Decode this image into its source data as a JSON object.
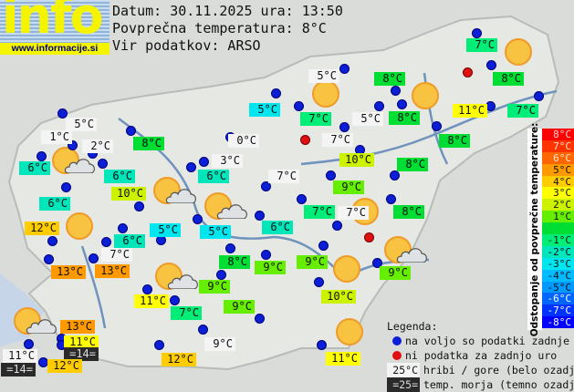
{
  "logo": {
    "text": "info",
    "url": "www.informacije.si"
  },
  "header": {
    "date_line": "Datum: 30.11.2025 ura: 13:50",
    "avg_line": "Povprečna temperatura: 8°C",
    "source_line": "Vir podatkov: ARSO"
  },
  "average_temperature": 8,
  "stations": [
    {
      "t": "5°C",
      "k": "mountain"
    },
    {
      "t": "1°C",
      "k": "mountain"
    },
    {
      "t": "2°C",
      "k": "mountain"
    },
    {
      "t": "8°C",
      "k": "valley"
    },
    {
      "t": "0°C",
      "k": "mountain"
    },
    {
      "t": "6°C",
      "k": "valley"
    },
    {
      "t": "3°C",
      "k": "mountain"
    },
    {
      "t": "6°C",
      "k": "valley"
    },
    {
      "t": "6°C",
      "k": "valley"
    },
    {
      "t": "5°C",
      "k": "valley"
    },
    {
      "t": "6°C",
      "k": "valley"
    },
    {
      "t": "10°C",
      "k": "valley"
    },
    {
      "t": "12°C",
      "k": "valley"
    },
    {
      "t": "5°C",
      "k": "valley"
    },
    {
      "t": "5°C",
      "k": "valley"
    },
    {
      "t": "6°C",
      "k": "valley"
    },
    {
      "t": "7°C",
      "k": "valley"
    },
    {
      "t": "5°C",
      "k": "mountain"
    },
    {
      "t": "8°C",
      "k": "valley"
    },
    {
      "t": "8°C",
      "k": "valley"
    },
    {
      "t": "7°C",
      "k": "valley"
    },
    {
      "t": "5°C",
      "k": "mountain"
    },
    {
      "t": "8°C",
      "k": "valley"
    },
    {
      "t": "11°C",
      "k": "valley"
    },
    {
      "t": "7°C",
      "k": "valley"
    },
    {
      "t": "7°C",
      "k": "mountain"
    },
    {
      "t": "8°C",
      "k": "valley"
    },
    {
      "t": "10°C",
      "k": "valley"
    },
    {
      "t": "8°C",
      "k": "valley"
    },
    {
      "t": "7°C",
      "k": "mountain"
    },
    {
      "t": "9°C",
      "k": "valley"
    },
    {
      "t": "7°C",
      "k": "valley"
    },
    {
      "t": "7°C",
      "k": "mountain"
    },
    {
      "t": "8°C",
      "k": "valley"
    },
    {
      "t": "6°C",
      "k": "valley"
    },
    {
      "t": "8°C",
      "k": "valley"
    },
    {
      "t": "9°C",
      "k": "valley"
    },
    {
      "t": "9°C",
      "k": "valley"
    },
    {
      "t": "10°C",
      "k": "valley"
    },
    {
      "t": "9°C",
      "k": "valley"
    },
    {
      "t": "9°C",
      "k": "valley"
    },
    {
      "t": "9°C",
      "k": "valley"
    },
    {
      "t": "9°C",
      "k": "mountain"
    },
    {
      "t": "11°C",
      "k": "valley"
    },
    {
      "t": "13°C",
      "k": "valley"
    },
    {
      "t": "13°C",
      "k": "valley"
    },
    {
      "t": "7°C",
      "k": "mountain"
    },
    {
      "t": "11°C",
      "k": "valley"
    },
    {
      "t": "7°C",
      "k": "valley"
    },
    {
      "t": "13°C",
      "k": "valley"
    },
    {
      "t": "11°C",
      "k": "valley"
    },
    {
      "t": "=14=",
      "k": "sea"
    },
    {
      "t": "11°C",
      "k": "mountain"
    },
    {
      "t": "=14=",
      "k": "sea"
    },
    {
      "t": "12°C",
      "k": "valley"
    },
    {
      "t": "12°C",
      "k": "valley"
    }
  ],
  "weather_icons": [
    "sun-cloud",
    "sun-cloud",
    "sun-cloud",
    "sun",
    "sun-cloud",
    "sun-cloud",
    "sun",
    "sun",
    "sun",
    "sun",
    "sun-cloud",
    "sun",
    "sun"
  ],
  "scale": {
    "title": "Odstopanje od povprečne temperature:",
    "rows": [
      {
        "label": "8°C",
        "color": "#ff0000",
        "text": "#ffd0d0"
      },
      {
        "label": "7°C",
        "color": "#ff3300",
        "text": "#ffe0d0"
      },
      {
        "label": "6°C",
        "color": "#ff6600",
        "text": "#ffe8d0"
      },
      {
        "label": "5°C",
        "color": "#ff9900",
        "text": "#111"
      },
      {
        "label": "4°C",
        "color": "#ffcc00",
        "text": "#111"
      },
      {
        "label": "3°C",
        "color": "#ffff00",
        "text": "#111"
      },
      {
        "label": "2°C",
        "color": "#ccf200",
        "text": "#111"
      },
      {
        "label": "1°C",
        "color": "#66ee00",
        "text": "#111"
      },
      {
        "label": "",
        "color": "#00dd33",
        "text": "#111"
      },
      {
        "label": "-1°C",
        "color": "#00ee77",
        "text": "#111"
      },
      {
        "label": "-2°C",
        "color": "#00e6bb",
        "text": "#111"
      },
      {
        "label": "-3°C",
        "color": "#00e6ee",
        "text": "#111"
      },
      {
        "label": "-4°C",
        "color": "#00bbff",
        "text": "#111"
      },
      {
        "label": "-5°C",
        "color": "#0099ff",
        "text": "#111"
      },
      {
        "label": "-6°C",
        "color": "#0066ff",
        "text": "#fff"
      },
      {
        "label": "-7°C",
        "color": "#0033ff",
        "text": "#fff"
      },
      {
        "label": "-8°C",
        "color": "#0000ff",
        "text": "#fff"
      }
    ]
  },
  "legend": {
    "title": "Legenda:",
    "blue_dot": "na voljo so podatki zadnje ure",
    "red_dot": "ni podatka za zadnjo uro",
    "mountain_sample": "25°C",
    "mountain_text": "hribi / gore (belo ozadje)",
    "sea_sample": "=25=",
    "sea_text": "temp. morja (temno ozadje)"
  },
  "colors": {
    "mountain_bg": "#f4f4f4",
    "sea_bg": "#2a2a2a",
    "dot_available": "#0a1fd6",
    "dot_missing": "#e01010"
  }
}
